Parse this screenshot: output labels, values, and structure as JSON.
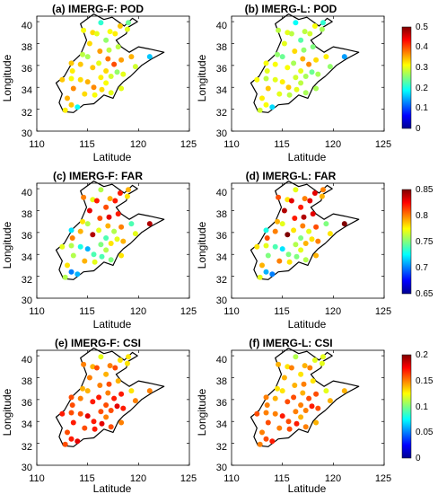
{
  "chart_data": {
    "type": "scatter",
    "xlabel": "Latitude",
    "ylabel": "Longitude",
    "xlim": [
      110,
      125
    ],
    "ylim": [
      30,
      40.5
    ],
    "xticks": [
      "110",
      "115",
      "120",
      "125"
    ],
    "yticks": [
      "30",
      "32",
      "34",
      "36",
      "38",
      "40"
    ],
    "colormap": [
      "#00008F",
      "#0000FF",
      "#007FFF",
      "#00FFFF",
      "#7FFF7F",
      "#FFFF00",
      "#FF7F00",
      "#FF0000",
      "#7F0000"
    ],
    "boundary": [
      [
        114.3,
        39.8
      ],
      [
        115.6,
        40.7
      ],
      [
        116.6,
        40.2
      ],
      [
        117.4,
        40.4
      ],
      [
        118.6,
        39.6
      ],
      [
        119.4,
        40.3
      ],
      [
        119.9,
        40.0
      ],
      [
        119.0,
        39.5
      ],
      [
        118.8,
        38.9
      ],
      [
        117.8,
        38.3
      ],
      [
        118.3,
        37.7
      ],
      [
        119.1,
        37.2
      ],
      [
        120.0,
        37.7
      ],
      [
        121.1,
        37.5
      ],
      [
        122.5,
        37.2
      ],
      [
        121.3,
        36.6
      ],
      [
        120.3,
        36.0
      ],
      [
        119.2,
        35.0
      ],
      [
        118.5,
        34.5
      ],
      [
        118.0,
        34.0
      ],
      [
        117.5,
        33.0
      ],
      [
        116.6,
        33.3
      ],
      [
        115.6,
        32.5
      ],
      [
        114.6,
        32.4
      ],
      [
        113.6,
        31.7
      ],
      [
        112.6,
        31.8
      ],
      [
        112.2,
        32.6
      ],
      [
        112.5,
        33.4
      ],
      [
        111.9,
        34.4
      ],
      [
        112.7,
        35.0
      ],
      [
        113.5,
        36.3
      ],
      [
        114.3,
        37.0
      ],
      [
        114.9,
        38.3
      ],
      [
        114.3,
        39.8
      ]
    ],
    "stations": [
      [
        114.6,
        39.2
      ],
      [
        115.5,
        39.0
      ],
      [
        116.3,
        39.9
      ],
      [
        117.2,
        39.1
      ],
      [
        118.2,
        39.6
      ],
      [
        119.0,
        39.9
      ],
      [
        114.5,
        37.0
      ],
      [
        115.2,
        38.0
      ],
      [
        115.9,
        38.9
      ],
      [
        116.8,
        38.3
      ],
      [
        117.7,
        38.9
      ],
      [
        118.9,
        39.3
      ],
      [
        113.5,
        35.5
      ],
      [
        114.3,
        36.1
      ],
      [
        115.0,
        36.8
      ],
      [
        115.5,
        35.8
      ],
      [
        116.2,
        37.3
      ],
      [
        117.1,
        37.4
      ],
      [
        117.0,
        36.6
      ],
      [
        118.3,
        36.5
      ],
      [
        119.3,
        36.8
      ],
      [
        121.1,
        36.8
      ],
      [
        112.5,
        34.7
      ],
      [
        113.4,
        34.8
      ],
      [
        113.6,
        33.9
      ],
      [
        114.3,
        34.7
      ],
      [
        115.0,
        34.5
      ],
      [
        115.6,
        34.0
      ],
      [
        116.3,
        34.9
      ],
      [
        116.8,
        34.4
      ],
      [
        117.3,
        35.0
      ],
      [
        117.9,
        35.4
      ],
      [
        118.5,
        35.2
      ],
      [
        113.0,
        33.0
      ],
      [
        113.4,
        32.4
      ],
      [
        114.0,
        32.2
      ],
      [
        114.7,
        33.4
      ],
      [
        115.7,
        33.3
      ],
      [
        116.4,
        33.8
      ],
      [
        117.3,
        33.5
      ],
      [
        118.3,
        33.9
      ],
      [
        112.8,
        31.9
      ],
      [
        116.1,
        36.2
      ],
      [
        116.8,
        35.5
      ],
      [
        119.7,
        35.9
      ],
      [
        118.0,
        37.7
      ],
      [
        117.6,
        36.1
      ],
      [
        113.4,
        36.2
      ]
    ],
    "panels": [
      {
        "title": "(a) IMERG-F: POD",
        "vmin": 0,
        "vmax": 0.5,
        "values": [
          0.31,
          0.33,
          0.21,
          0.31,
          0.34,
          0.24,
          0.28,
          0.33,
          0.3,
          0.26,
          0.32,
          0.3,
          0.32,
          0.34,
          0.27,
          0.34,
          0.36,
          0.28,
          0.38,
          0.36,
          0.35,
          0.16,
          0.34,
          0.31,
          0.37,
          0.33,
          0.35,
          0.37,
          0.32,
          0.31,
          0.29,
          0.26,
          0.3,
          0.35,
          0.34,
          0.19,
          0.33,
          0.31,
          0.33,
          0.3,
          0.3,
          0.32,
          0.3,
          0.33,
          0.29,
          0.28,
          0.4,
          0.34
        ]
      },
      {
        "title": "(b) IMERG-L: POD",
        "vmin": 0,
        "vmax": 0.5,
        "values": [
          0.28,
          0.3,
          0.19,
          0.28,
          0.31,
          0.21,
          0.26,
          0.3,
          0.28,
          0.23,
          0.29,
          0.27,
          0.3,
          0.31,
          0.24,
          0.31,
          0.33,
          0.26,
          0.35,
          0.33,
          0.32,
          0.14,
          0.31,
          0.28,
          0.34,
          0.3,
          0.32,
          0.34,
          0.29,
          0.28,
          0.27,
          0.24,
          0.27,
          0.32,
          0.31,
          0.17,
          0.3,
          0.28,
          0.3,
          0.27,
          0.27,
          0.29,
          0.27,
          0.3,
          0.26,
          0.25,
          0.37,
          0.31
        ]
      },
      {
        "title": "(c) IMERG-F: FAR",
        "vmin": 0.65,
        "vmax": 0.85,
        "values": [
          0.8,
          0.77,
          0.76,
          0.79,
          0.82,
          0.79,
          0.78,
          0.83,
          0.82,
          0.81,
          0.82,
          0.78,
          0.8,
          0.79,
          0.76,
          0.84,
          0.81,
          0.83,
          0.79,
          0.8,
          0.74,
          0.84,
          0.77,
          0.76,
          0.76,
          0.73,
          0.71,
          0.74,
          0.75,
          0.76,
          0.78,
          0.77,
          0.79,
          0.78,
          0.7,
          0.71,
          0.79,
          0.77,
          0.74,
          0.75,
          0.78,
          0.76,
          0.77,
          0.74,
          0.77,
          0.82,
          0.76,
          0.72
        ]
      },
      {
        "title": "(d) IMERG-L: FAR",
        "vmin": 0.65,
        "vmax": 0.85,
        "values": [
          0.81,
          0.78,
          0.77,
          0.8,
          0.83,
          0.8,
          0.79,
          0.84,
          0.83,
          0.82,
          0.83,
          0.79,
          0.81,
          0.8,
          0.77,
          0.85,
          0.82,
          0.84,
          0.8,
          0.81,
          0.75,
          0.85,
          0.78,
          0.77,
          0.75,
          0.74,
          0.72,
          0.75,
          0.76,
          0.77,
          0.79,
          0.78,
          0.8,
          0.79,
          0.71,
          0.7,
          0.8,
          0.78,
          0.75,
          0.76,
          0.79,
          0.77,
          0.78,
          0.75,
          0.78,
          0.83,
          0.77,
          0.73
        ]
      },
      {
        "title": "(e) IMERG-F: CSI",
        "vmin": 0,
        "vmax": 0.2,
        "values": [
          0.15,
          0.14,
          0.12,
          0.15,
          0.13,
          0.13,
          0.14,
          0.15,
          0.16,
          0.14,
          0.16,
          0.13,
          0.16,
          0.15,
          0.14,
          0.17,
          0.15,
          0.16,
          0.15,
          0.17,
          0.13,
          0.15,
          0.17,
          0.16,
          0.17,
          0.16,
          0.18,
          0.17,
          0.16,
          0.15,
          0.16,
          0.18,
          0.17,
          0.16,
          0.17,
          0.18,
          0.16,
          0.17,
          0.18,
          0.16,
          0.15,
          0.16,
          0.17,
          0.16,
          0.15,
          0.14,
          0.17,
          0.16
        ]
      },
      {
        "title": "(f) IMERG-L: CSI",
        "vmin": 0,
        "vmax": 0.2,
        "values": [
          0.14,
          0.13,
          0.11,
          0.14,
          0.12,
          0.12,
          0.13,
          0.14,
          0.15,
          0.13,
          0.15,
          0.12,
          0.15,
          0.14,
          0.13,
          0.16,
          0.14,
          0.15,
          0.14,
          0.16,
          0.12,
          0.14,
          0.16,
          0.15,
          0.16,
          0.15,
          0.17,
          0.16,
          0.15,
          0.14,
          0.15,
          0.17,
          0.16,
          0.15,
          0.16,
          0.17,
          0.15,
          0.16,
          0.17,
          0.15,
          0.14,
          0.15,
          0.16,
          0.15,
          0.14,
          0.13,
          0.16,
          0.15
        ]
      }
    ],
    "colorbars": [
      {
        "ticks": [
          "0.5",
          "0.4",
          "0.3",
          "0.2",
          "0.1",
          "0"
        ]
      },
      {
        "ticks": [
          "0.85",
          "0.8",
          "0.75",
          "0.7",
          "0.65"
        ]
      },
      {
        "ticks": [
          "0.2",
          "0.15",
          "0.1",
          "0.05",
          "0"
        ]
      }
    ]
  }
}
